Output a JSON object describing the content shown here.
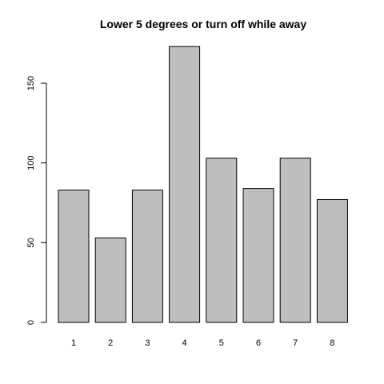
{
  "chart_data": {
    "type": "bar",
    "title": "Lower 5 degrees or turn off while away",
    "xlabel": "",
    "ylabel": "",
    "categories": [
      "1",
      "2",
      "3",
      "4",
      "5",
      "6",
      "7",
      "8"
    ],
    "values": [
      83,
      53,
      83,
      173,
      103,
      84,
      103,
      77
    ],
    "ylim": [
      0,
      180
    ],
    "yticks": [
      0,
      50,
      100,
      150
    ],
    "bar_color": "#bebebe",
    "grid": false,
    "legend": "none"
  }
}
